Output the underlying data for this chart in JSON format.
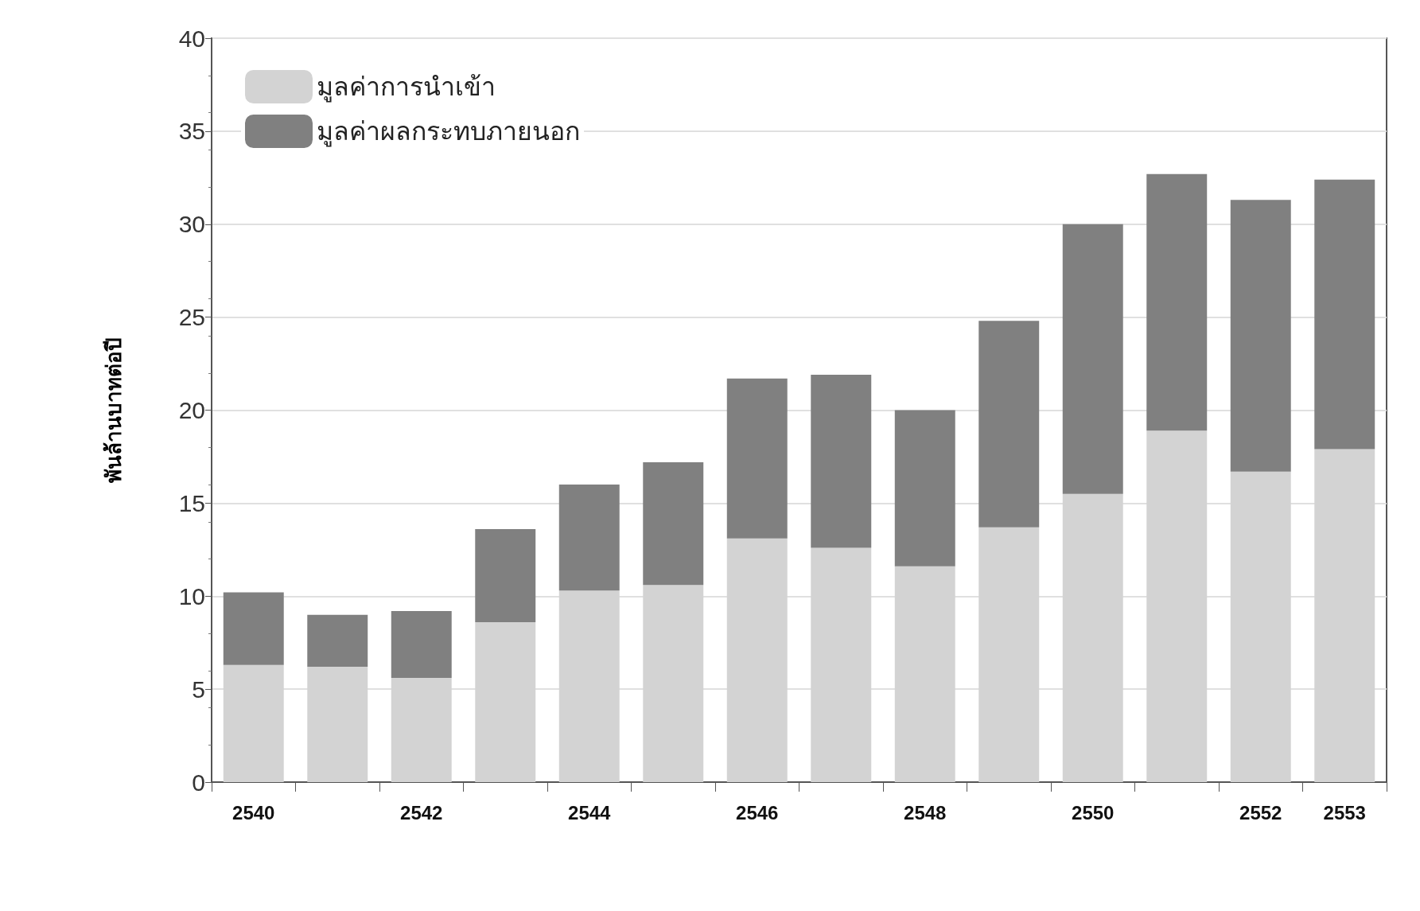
{
  "chart_data": {
    "type": "bar",
    "stacked": true,
    "ylabel": "พันล้านบาทต่อปี",
    "categories": [
      "2540",
      null,
      "2542",
      null,
      "2544",
      null,
      "2546",
      null,
      "2548",
      null,
      "2550",
      null,
      "2552",
      "2553"
    ],
    "series": [
      {
        "name": "มูลค่าการนำเข้า",
        "color": "#d3d3d3",
        "values": [
          6.3,
          6.2,
          5.6,
          8.6,
          10.3,
          10.6,
          13.1,
          12.6,
          11.6,
          13.7,
          15.5,
          18.9,
          16.7,
          17.9
        ]
      },
      {
        "name": "มูลค่าผลกระทบภายนอก",
        "color": "#808080",
        "values": [
          3.9,
          2.8,
          3.6,
          5.0,
          5.7,
          6.6,
          8.6,
          9.3,
          8.4,
          11.1,
          14.5,
          13.8,
          14.6,
          14.5
        ]
      }
    ],
    "ylim": [
      0,
      40
    ],
    "yticks": [
      0,
      5,
      10,
      15,
      20,
      25,
      30,
      35,
      40
    ],
    "grid": "y",
    "legend": "top left"
  }
}
